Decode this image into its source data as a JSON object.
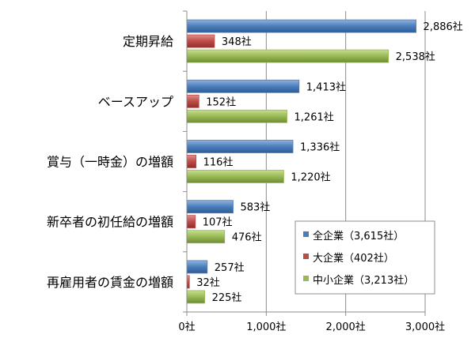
{
  "chart_data": {
    "type": "bar",
    "orientation": "horizontal",
    "categories": [
      "定期昇給",
      "ベースアップ",
      "賞与（一時金）の増額",
      "新卒者の初任給の増額",
      "再雇用者の賃金の増額"
    ],
    "series": [
      {
        "name": "全企業（3,615社）",
        "color": "#4A7EBB",
        "values": [
          2886,
          1413,
          1336,
          583,
          257
        ],
        "labels": [
          "2,886社",
          "1,413社",
          "1,336社",
          "583社",
          "257社"
        ]
      },
      {
        "name": "大企業（402社）",
        "color": "#BE4B48",
        "values": [
          348,
          152,
          116,
          107,
          32
        ],
        "labels": [
          "348社",
          "152社",
          "116社",
          "107社",
          "32社"
        ]
      },
      {
        "name": "中小企業（3,213社）",
        "color": "#98B954",
        "values": [
          2538,
          1261,
          1220,
          476,
          225
        ],
        "labels": [
          "2,538社",
          "1,261社",
          "1,220社",
          "476社",
          "225社"
        ]
      }
    ],
    "xlim": [
      0,
      3000
    ],
    "x_ticks": [
      {
        "value": 0,
        "label": "0社"
      },
      {
        "value": 1000,
        "label": "1,000社"
      },
      {
        "value": 2000,
        "label": "2,000社"
      },
      {
        "value": 3000,
        "label": "3,000社"
      }
    ],
    "grid": true,
    "legend_position": "bottom-right",
    "title": "",
    "xlabel": "",
    "ylabel": ""
  }
}
